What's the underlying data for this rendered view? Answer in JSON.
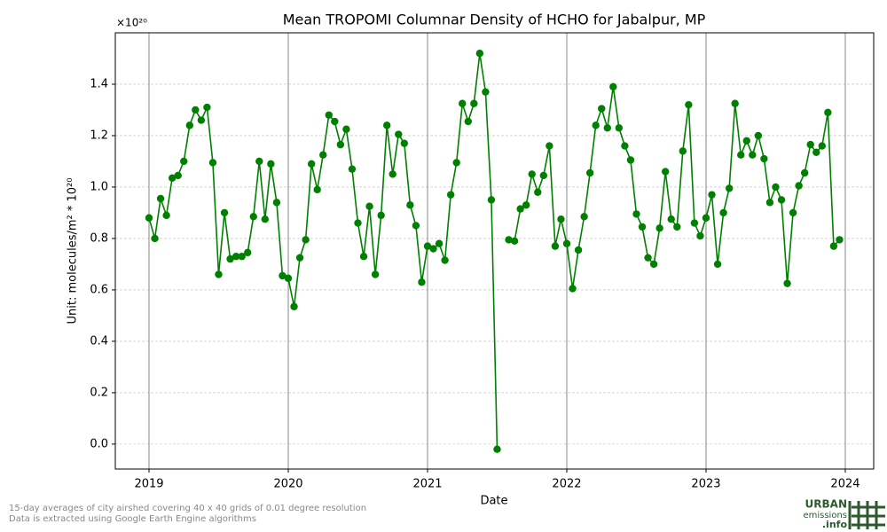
{
  "chart_data": {
    "type": "line",
    "title": "Mean TROPOMI Columnar Density of HCHO for Jabalpur, MP",
    "xlabel": "Date",
    "ylabel": "Unit: molecules/m² * 10²⁰",
    "y_offset_label": "×10²⁰",
    "notes": [
      "15-day averages of city airshed covering 40 x 40 grids of 0.01 degree resolution",
      "Data is extracted using Google Earth Engine algorithms"
    ],
    "logo_text": [
      "URBAN",
      "emissions",
      ".info"
    ],
    "x": [
      2019,
      2019.0417,
      2019.0833,
      2019.125,
      2019.1667,
      2019.2083,
      2019.25,
      2019.2917,
      2019.3333,
      2019.375,
      2019.4167,
      2019.4583,
      2019.5,
      2019.5417,
      2019.5833,
      2019.625,
      2019.6667,
      2019.7083,
      2019.75,
      2019.7917,
      2019.8333,
      2019.875,
      2019.9167,
      2019.9583,
      2020,
      2020.0417,
      2020.0833,
      2020.125,
      2020.1667,
      2020.2083,
      2020.25,
      2020.2917,
      2020.3333,
      2020.375,
      2020.4167,
      2020.4583,
      2020.5,
      2020.5417,
      2020.5833,
      2020.625,
      2020.6667,
      2020.7083,
      2020.75,
      2020.7917,
      2020.8333,
      2020.875,
      2020.9167,
      2020.9583,
      2021,
      2021.0417,
      2021.0833,
      2021.125,
      2021.1667,
      2021.2083,
      2021.25,
      2021.2917,
      2021.3333,
      2021.375,
      2021.4167,
      2021.4583,
      2021.5,
      2021.5417,
      2021.5833,
      2021.625,
      2021.6667,
      2021.7083,
      2021.75,
      2021.7917,
      2021.8333,
      2021.875,
      2021.9167,
      2021.9583,
      2022,
      2022.0417,
      2022.0833,
      2022.125,
      2022.1667,
      2022.2083,
      2022.25,
      2022.2917,
      2022.3333,
      2022.375,
      2022.4167,
      2022.4583,
      2022.5,
      2022.5417,
      2022.5833,
      2022.625,
      2022.6667,
      2022.7083,
      2022.75,
      2022.7917,
      2022.8333,
      2022.875,
      2022.9167,
      2022.9583,
      2023,
      2023.0417,
      2023.0833,
      2023.125,
      2023.1667,
      2023.2083,
      2023.25,
      2023.2917,
      2023.3333,
      2023.375,
      2023.4167,
      2023.4583,
      2023.5,
      2023.5417,
      2023.5833,
      2023.625,
      2023.6667,
      2023.7083,
      2023.75,
      2023.7917,
      2023.8333,
      2023.875,
      2023.9167,
      2023.9583
    ],
    "series": [
      {
        "name": "HCHO",
        "color": "#008000",
        "values": [
          0.88,
          0.8,
          0.955,
          0.89,
          1.035,
          1.045,
          1.1,
          1.24,
          1.3,
          1.26,
          1.31,
          1.095,
          0.66,
          0.9,
          0.72,
          0.73,
          0.73,
          0.745,
          0.885,
          1.1,
          0.875,
          1.09,
          0.94,
          0.655,
          0.645,
          0.535,
          0.725,
          0.795,
          1.09,
          0.99,
          1.125,
          1.28,
          1.255,
          1.165,
          1.225,
          1.07,
          0.86,
          0.73,
          0.925,
          0.66,
          0.89,
          1.24,
          1.05,
          1.205,
          1.17,
          0.93,
          0.85,
          0.63,
          0.77,
          0.76,
          0.78,
          0.715,
          0.97,
          1.095,
          1.325,
          1.255,
          1.325,
          1.52,
          1.37,
          0.95,
          -0.02,
          null,
          0.795,
          0.79,
          0.915,
          0.93,
          1.05,
          0.98,
          1.045,
          1.16,
          0.77,
          0.875,
          0.78,
          0.605,
          0.755,
          0.885,
          1.055,
          1.24,
          1.305,
          1.23,
          1.39,
          1.23,
          1.16,
          1.105,
          0.895,
          0.845,
          0.725,
          0.7,
          0.84,
          1.06,
          0.875,
          0.845,
          1.14,
          1.32,
          0.86,
          0.81,
          0.88,
          0.97,
          0.7,
          0.9,
          0.995,
          1.325,
          1.125,
          1.18,
          1.125,
          1.2,
          1.11,
          0.94,
          1.0,
          0.95,
          0.625,
          0.9,
          1.005,
          1.055,
          1.165,
          1.135,
          1.16,
          1.29,
          0.77,
          0.795
        ]
      }
    ],
    "xlim": [
      2018.758,
      2024.204
    ],
    "xticks": [
      2019,
      2020,
      2021,
      2022,
      2023,
      2024
    ],
    "ylim": [
      -0.097,
      1.6
    ],
    "yticks": [
      {
        "value": 0,
        "label": "0.0"
      },
      0.2,
      0.4,
      0.6,
      0.8,
      {
        "value": 1,
        "label": "1.0"
      },
      1.2,
      1.4
    ],
    "grid": true
  }
}
